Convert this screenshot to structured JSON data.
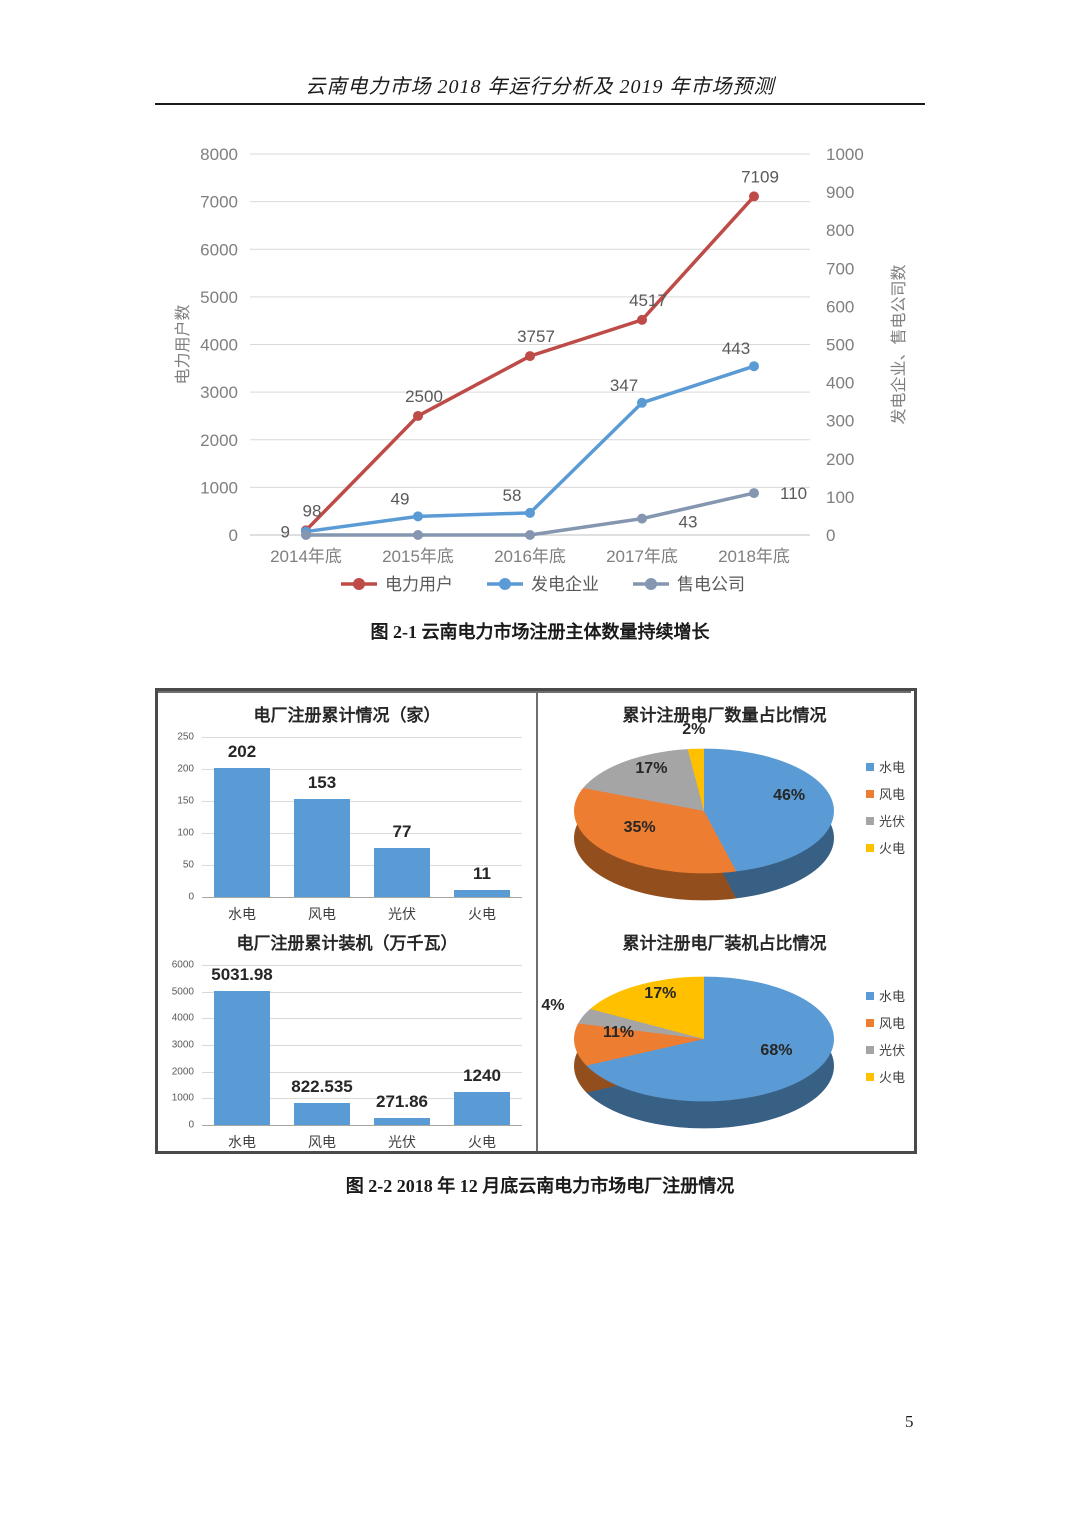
{
  "page": {
    "header_title": "云南电力市场 2018 年运行分析及 2019 年市场预测",
    "page_number": "5"
  },
  "fig1": {
    "caption": "图 2-1   云南电力市场注册主体数量持续增长"
  },
  "fig2": {
    "caption": "图 2-2   2018 年 12 月底云南电力市场电厂注册情况"
  },
  "chart_data": [
    {
      "type": "line",
      "title": "",
      "x": [
        "2014年底",
        "2015年底",
        "2016年底",
        "2017年底",
        "2018年底"
      ],
      "series": [
        {
          "name": "电力用户",
          "axis": "left",
          "color": "#BE4B48",
          "values": [
            98,
            2500,
            3757,
            4517,
            7109
          ],
          "data_labels": [
            "98",
            "2500",
            "3757",
            "4517",
            "7109"
          ]
        },
        {
          "name": "发电企业",
          "axis": "right",
          "color": "#5B9BD5",
          "values": [
            9,
            49,
            58,
            347,
            443
          ],
          "data_labels": [
            "9",
            "49",
            "58",
            "347",
            "443"
          ]
        },
        {
          "name": "售电公司",
          "axis": "right",
          "color": "#8496B0",
          "values": [
            0,
            0,
            0,
            43,
            110
          ],
          "data_labels": [
            null,
            null,
            null,
            "43",
            "110"
          ]
        }
      ],
      "left_axis": {
        "label": "电力用户数",
        "min": 0,
        "max": 8000,
        "step": 1000
      },
      "right_axis": {
        "label": "发电企业、售电公司数",
        "min": 0,
        "max": 1000,
        "step": 100
      },
      "legend_position": "bottom",
      "grid": true
    },
    {
      "type": "bar",
      "title": "电厂注册累计情况（家）",
      "categories": [
        "水电",
        "风电",
        "光伏",
        "火电"
      ],
      "values": [
        202,
        153,
        77,
        11
      ],
      "data_labels": [
        "202",
        "153",
        "77",
        "11"
      ],
      "ylim": [
        0,
        250
      ],
      "ystep": 50,
      "bar_color": "#5B9BD5",
      "grid": true
    },
    {
      "type": "pie",
      "title": "累计注册电厂数量占比情况",
      "labels": [
        "水电",
        "风电",
        "光伏",
        "火电"
      ],
      "values": [
        46,
        35,
        17,
        2
      ],
      "data_labels": [
        "46%",
        "35%",
        "17%",
        "2%"
      ],
      "colors": [
        "#5B9BD5",
        "#ED7D31",
        "#A5A5A5",
        "#FFC000"
      ],
      "legend_position": "right",
      "style": "3d-pie"
    },
    {
      "type": "bar",
      "title": "电厂注册累计装机（万千瓦）",
      "categories": [
        "水电",
        "风电",
        "光伏",
        "火电"
      ],
      "values": [
        5031.98,
        822.535,
        271.86,
        1240
      ],
      "data_labels": [
        "5031.98",
        "822.535",
        "271.86",
        "1240"
      ],
      "ylim": [
        0,
        6000
      ],
      "ystep": 1000,
      "bar_color": "#5B9BD5",
      "grid": true
    },
    {
      "type": "pie",
      "title": "累计注册电厂装机占比情况",
      "labels": [
        "水电",
        "风电",
        "光伏",
        "火电"
      ],
      "values": [
        68,
        11,
        4,
        17
      ],
      "data_labels": [
        "68%",
        "11%",
        "4%",
        "17%"
      ],
      "colors": [
        "#5B9BD5",
        "#ED7D31",
        "#A5A5A5",
        "#FFC000"
      ],
      "legend_position": "right",
      "style": "3d-pie"
    }
  ]
}
